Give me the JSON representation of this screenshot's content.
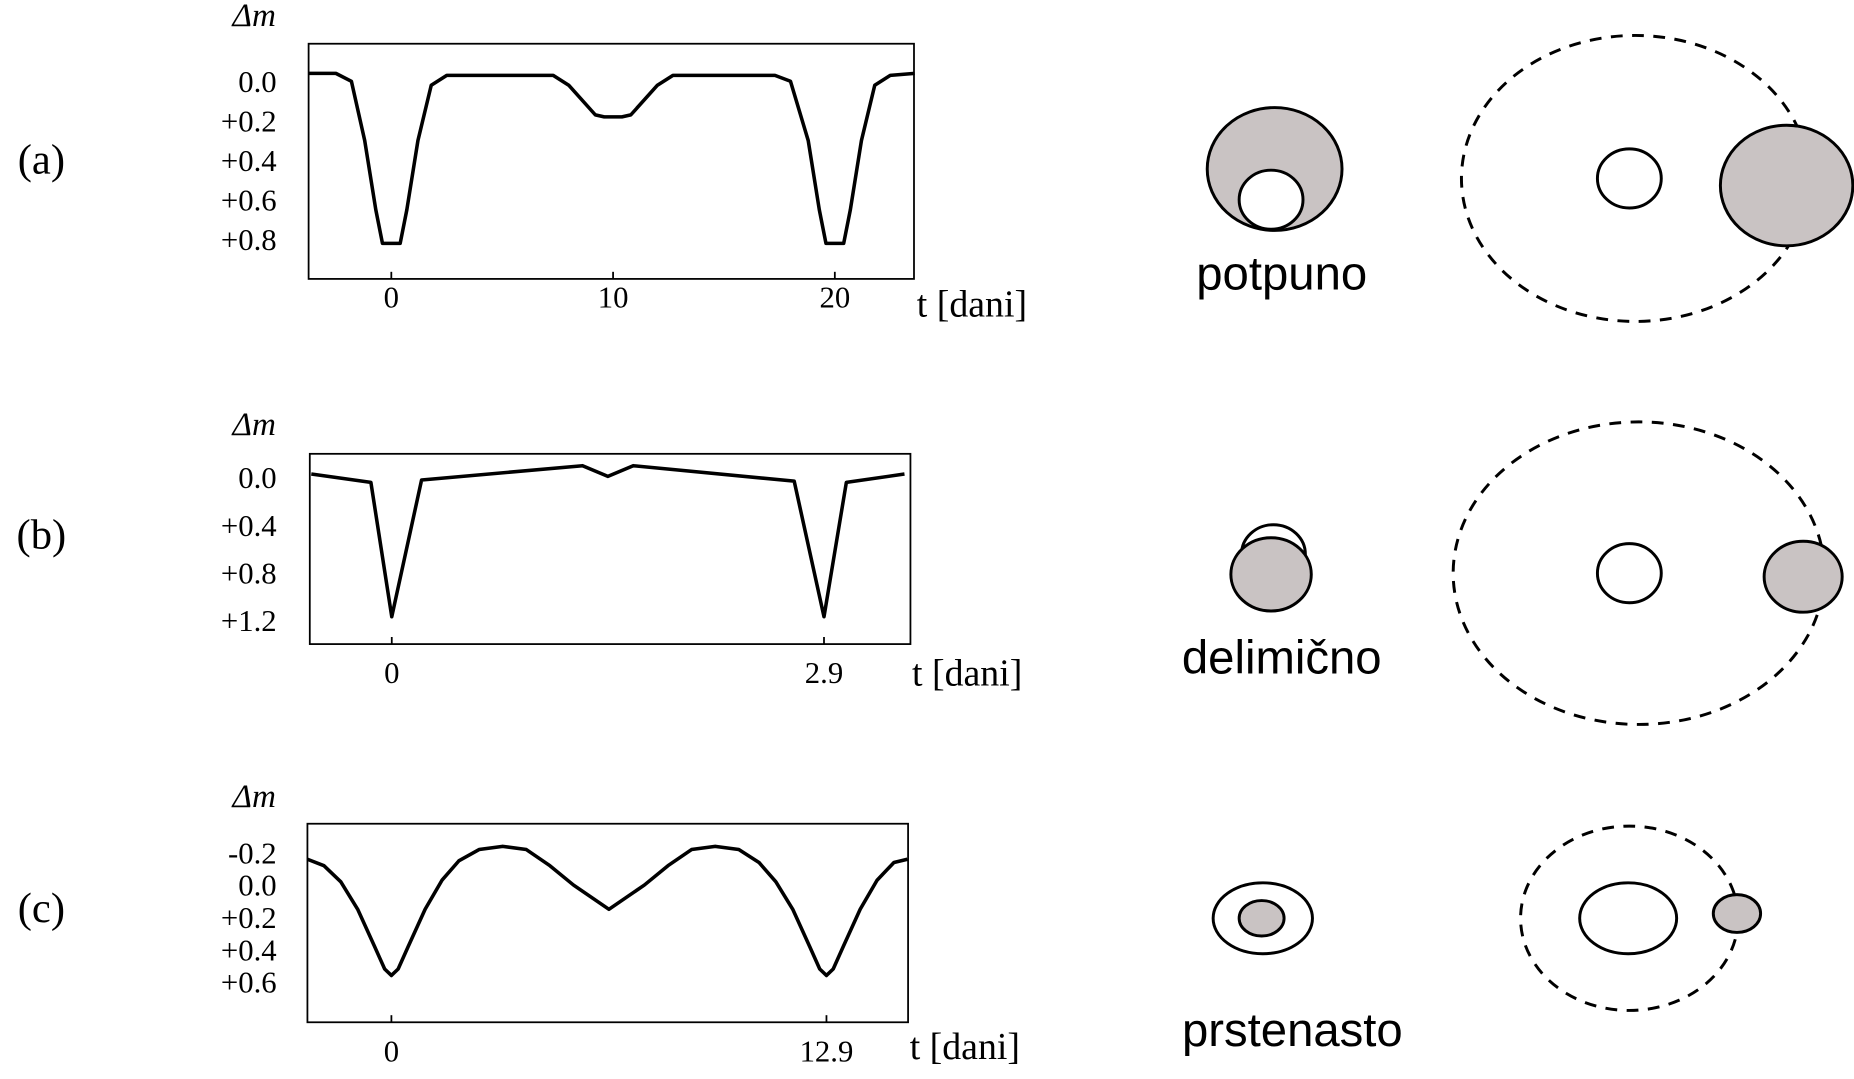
{
  "chart_data": [
    {
      "type": "line",
      "label": "(a)",
      "y_label": "Δm",
      "x_label": "t [dani]",
      "color": "#000000",
      "x": [
        -3.7,
        -2.5,
        -1.8,
        -1.2,
        -0.7,
        -0.4,
        0.4,
        0.7,
        1.2,
        1.8,
        2.5,
        7.3,
        8,
        9.2,
        9.6,
        10.4,
        10.8,
        12,
        12.7,
        17.3,
        18,
        18.8,
        19.3,
        19.6,
        20.4,
        20.7,
        21.2,
        21.8,
        22.5,
        23.6
      ],
      "values": [
        -0.04,
        -0.04,
        0.0,
        0.3,
        0.65,
        0.82,
        0.82,
        0.65,
        0.3,
        0.02,
        -0.03,
        -0.03,
        0.02,
        0.17,
        0.18,
        0.18,
        0.17,
        0.02,
        -0.03,
        -0.03,
        0.0,
        0.3,
        0.65,
        0.82,
        0.82,
        0.65,
        0.3,
        0.02,
        -0.03,
        -0.04
      ],
      "xlim": [
        -3.73,
        23.57
      ],
      "ylim": [
        1.0,
        -0.19
      ],
      "xticks": [
        0,
        10,
        20
      ],
      "yticks": [
        {
          "value": 0,
          "label": "0.0"
        },
        {
          "value": 0.2,
          "label": "+0.2"
        },
        {
          "value": 0.4,
          "label": "+0.4"
        },
        {
          "value": 0.6,
          "label": "+0.6"
        },
        {
          "value": 0.8,
          "label": "+0.8"
        }
      ]
    },
    {
      "type": "line",
      "label": "(b)",
      "y_label": "Δm",
      "x_label": "t [dani]",
      "color": "#000000",
      "x": [
        -0.54,
        -0.14,
        0,
        0.2,
        1.28,
        1.45,
        1.62,
        2.7,
        2.9,
        3.05,
        3.44
      ],
      "values": [
        -0.03,
        0.04,
        1.17,
        0.02,
        -0.1,
        -0.01,
        -0.1,
        0.03,
        1.17,
        0.04,
        -0.03
      ],
      "xlim": [
        -0.55,
        3.48
      ],
      "ylim": [
        1.4,
        -0.2
      ],
      "xticks": [
        0,
        2.9
      ],
      "yticks": [
        {
          "value": 0,
          "label": "0.0"
        },
        {
          "value": 0.4,
          "label": "+0.4"
        },
        {
          "value": 0.8,
          "label": "+0.8"
        },
        {
          "value": 1.2,
          "label": "+1.2"
        }
      ]
    },
    {
      "type": "line",
      "label": "(c)",
      "y_label": "Δm",
      "x_label": "t [dani]",
      "color": "#000000",
      "x": [
        -2.49,
        -2,
        -1.5,
        -1,
        -0.5,
        -0.2,
        0,
        0.2,
        0.5,
        1,
        1.5,
        2,
        2.6,
        3.3,
        4,
        4.7,
        5.4,
        6.45,
        7.5,
        8.2,
        8.9,
        9.6,
        10.3,
        10.9,
        11.4,
        11.9,
        12.4,
        12.7,
        12.9,
        13.1,
        13.4,
        13.9,
        14.4,
        14.9,
        15.3
      ],
      "values": [
        -0.16,
        -0.12,
        -0.02,
        0.15,
        0.38,
        0.52,
        0.56,
        0.52,
        0.38,
        0.15,
        -0.03,
        -0.15,
        -0.22,
        -0.24,
        -0.22,
        -0.12,
        0.0,
        0.15,
        0.0,
        -0.12,
        -0.22,
        -0.24,
        -0.22,
        -0.14,
        -0.02,
        0.15,
        0.38,
        0.52,
        0.56,
        0.52,
        0.38,
        0.15,
        -0.03,
        -0.14,
        -0.16
      ],
      "xlim": [
        -2.49,
        15.32
      ],
      "ylim": [
        0.85,
        -0.38
      ],
      "xticks": [
        0,
        12.9
      ],
      "yticks": [
        {
          "value": -0.2,
          "label": "-0.2"
        },
        {
          "value": 0,
          "label": "0.0"
        },
        {
          "value": 0.2,
          "label": "+0.2"
        },
        {
          "value": 0.4,
          "label": "+0.4"
        },
        {
          "value": 0.6,
          "label": "+0.6"
        }
      ]
    }
  ],
  "diagrams": [
    {
      "label": "potpuno"
    },
    {
      "label": "delimično"
    },
    {
      "label": "prstenasto"
    }
  ]
}
